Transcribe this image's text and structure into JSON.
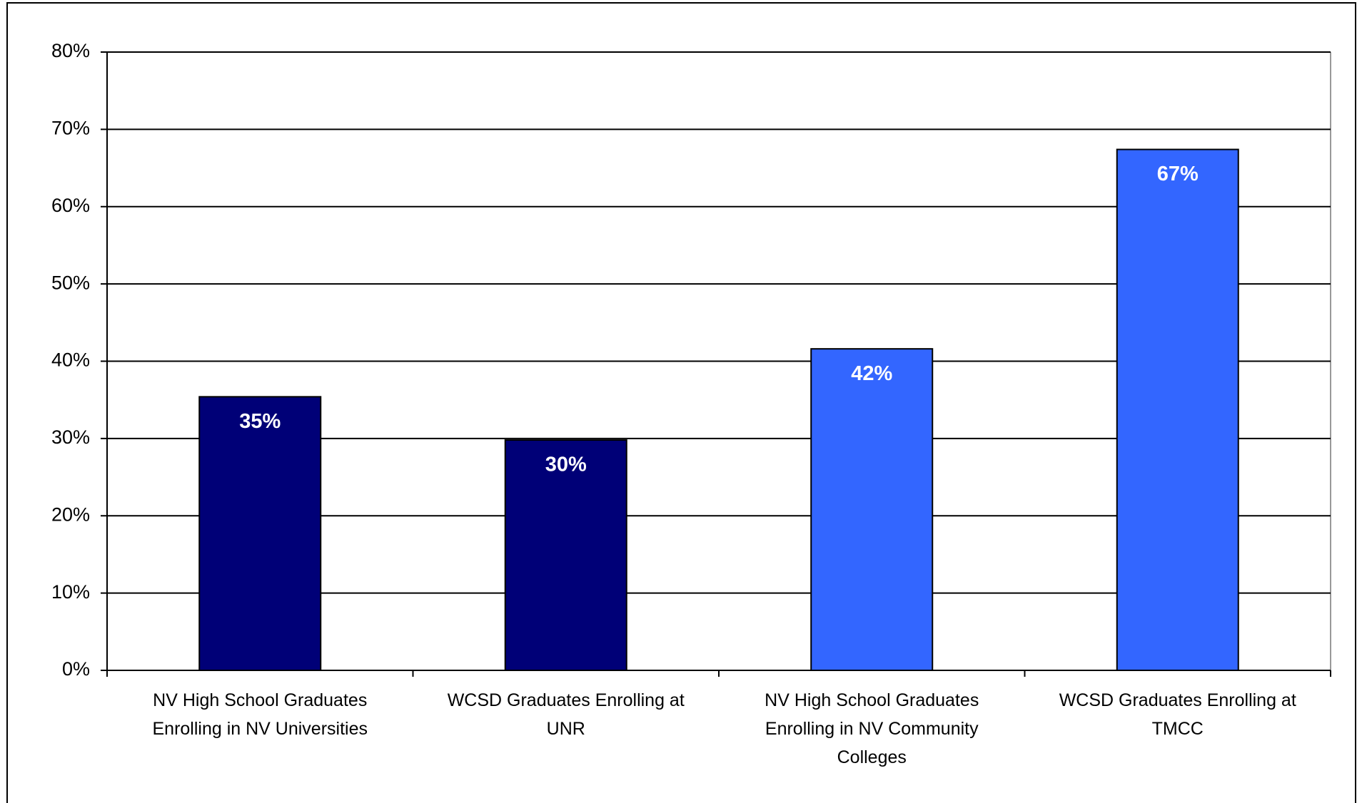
{
  "chart_data": {
    "type": "bar",
    "categories": [
      "NV High School Graduates Enrolling in NV Universities",
      "WCSD Graduates Enrolling at UNR",
      "NV High School Graduates Enrolling in NV Community Colleges",
      "WCSD Graduates Enrolling at TMCC"
    ],
    "values": [
      35.4,
      29.8,
      41.6,
      67.4
    ],
    "value_labels": [
      "35%",
      "30%",
      "42%",
      "67%"
    ],
    "colors": [
      "#000077",
      "#000077",
      "#3366ff",
      "#3366ff"
    ],
    "ylim": [
      0,
      80
    ],
    "yticks": [
      {
        "value": 0,
        "label": "0%"
      },
      {
        "value": 10,
        "label": "10%"
      },
      {
        "value": 20,
        "label": "20%"
      },
      {
        "value": 30,
        "label": "30%"
      },
      {
        "value": 40,
        "label": "40%"
      },
      {
        "value": 50,
        "label": "50%"
      },
      {
        "value": 60,
        "label": "60%"
      },
      {
        "value": 70,
        "label": "70%"
      },
      {
        "value": 80,
        "label": "80%"
      }
    ],
    "grid": true
  }
}
